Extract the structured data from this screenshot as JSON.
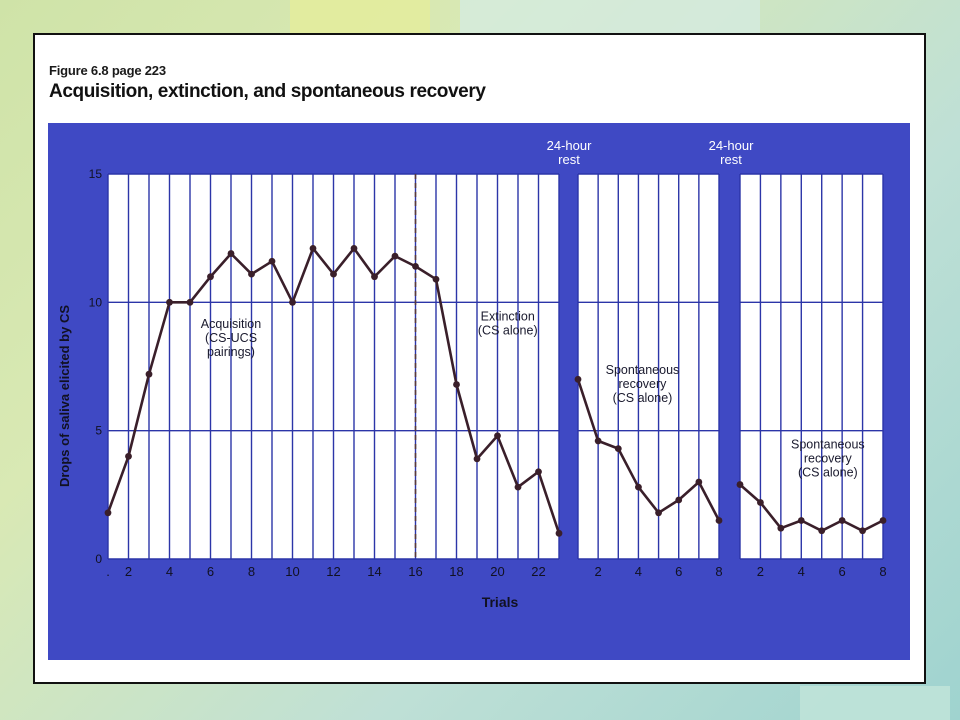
{
  "figure": {
    "ref": "Figure 6.8 page 223",
    "title": "Acquisition, extinction, and spontaneous recovery"
  },
  "colors": {
    "panel_blue": "#3f49c4",
    "plot_white": "#ffffff",
    "grid_blue": "#2c35a8",
    "line_dark": "#3a1f2a",
    "text_dark": "#1a1a2e",
    "axis_text_on_blue": "#111122"
  },
  "chart_data": {
    "type": "line",
    "ylabel": "Drops of saliva elicited by CS",
    "xlabel": "Trials",
    "ylim": [
      0,
      15
    ],
    "y_ticks": [
      0,
      5,
      10,
      15
    ],
    "grid": true,
    "legend": "none",
    "panels": [
      {
        "name": "acquisition-extinction",
        "x_range": [
          1,
          23
        ],
        "x_tick_labels": [
          ".",
          "2",
          "4",
          "6",
          "8",
          "10",
          "12",
          "14",
          "16",
          "18",
          "20",
          "22"
        ],
        "x_tick_values": [
          1,
          2,
          4,
          6,
          8,
          10,
          12,
          14,
          16,
          18,
          20,
          22
        ],
        "dashed_marker_at": 16,
        "series": [
          {
            "x": [
              1,
              2,
              3,
              4,
              5,
              6,
              7,
              8,
              9,
              10,
              11,
              12,
              13,
              14,
              15,
              16,
              17,
              18,
              19,
              20,
              21,
              22,
              23
            ],
            "values": [
              1.8,
              4.0,
              7.2,
              10.0,
              10.0,
              11.0,
              11.9,
              11.1,
              11.6,
              10.0,
              12.1,
              11.1,
              12.1,
              11.0,
              11.8,
              11.4,
              10.9,
              6.8,
              3.9,
              4.8,
              2.8,
              3.4,
              1.0
            ]
          }
        ],
        "annotations": [
          {
            "lines": [
              "Acquisition",
              "(CS-UCS",
              "pairings)"
            ],
            "x": 7,
            "y": 9
          },
          {
            "lines": [
              "Extinction",
              "(CS alone)"
            ],
            "x": 20.5,
            "y": 9.3
          }
        ]
      },
      {
        "name": "recovery-1",
        "x_range": [
          1,
          8
        ],
        "x_tick_labels": [
          "2",
          "4",
          "6",
          "8"
        ],
        "x_tick_values": [
          2,
          4,
          6,
          8
        ],
        "rest_label": [
          "24-hour",
          "rest"
        ],
        "series": [
          {
            "x": [
              1,
              2,
              3,
              4,
              5,
              6,
              7,
              8
            ],
            "values": [
              7.0,
              4.6,
              4.3,
              2.8,
              1.8,
              2.3,
              3.0,
              1.5
            ]
          }
        ],
        "annotations": [
          {
            "lines": [
              "Spontaneous",
              "recovery",
              "(CS alone)"
            ],
            "x": 4.2,
            "y": 7.2
          }
        ]
      },
      {
        "name": "recovery-2",
        "x_range": [
          1,
          8
        ],
        "x_tick_labels": [
          "2",
          "4",
          "6",
          "8"
        ],
        "x_tick_values": [
          2,
          4,
          6,
          8
        ],
        "rest_label": [
          "24-hour",
          "rest"
        ],
        "series": [
          {
            "x": [
              1,
              2,
              3,
              4,
              5,
              6,
              7,
              8
            ],
            "values": [
              2.9,
              2.2,
              1.2,
              1.5,
              1.1,
              1.5,
              1.1,
              1.5
            ]
          }
        ],
        "annotations": [
          {
            "lines": [
              "Spontaneous",
              "recovery",
              "(CS alone)"
            ],
            "x": 5.3,
            "y": 4.3
          }
        ]
      }
    ]
  }
}
